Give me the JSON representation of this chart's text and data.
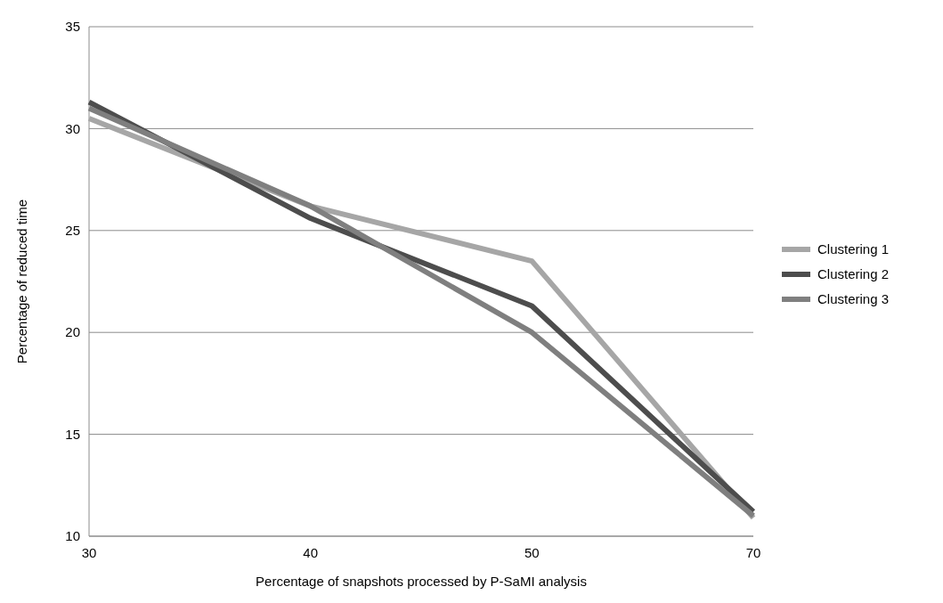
{
  "chart_data": {
    "type": "line",
    "xlabel": "Percentage of snapshots  processed by P-SaMI analysis",
    "ylabel": "Percentage of reduced time",
    "categories": [
      "30",
      "40",
      "50",
      "70"
    ],
    "ylim": [
      10,
      35
    ],
    "yticks": [
      10,
      15,
      20,
      25,
      30,
      35
    ],
    "grid": "y",
    "legend": "right",
    "marker": "none",
    "line_style": "solid",
    "series": [
      {
        "name": "Clustering 1",
        "color": "#a6a6a6",
        "values": [
          30.5,
          26.2,
          23.5,
          10.9
        ]
      },
      {
        "name": "Clustering 2",
        "color": "#4d4d4d",
        "values": [
          31.3,
          25.6,
          21.3,
          11.2
        ]
      },
      {
        "name": "Clustering 3",
        "color": "#7f7f7f",
        "values": [
          31.0,
          26.2,
          20.0,
          11.0
        ]
      }
    ]
  }
}
